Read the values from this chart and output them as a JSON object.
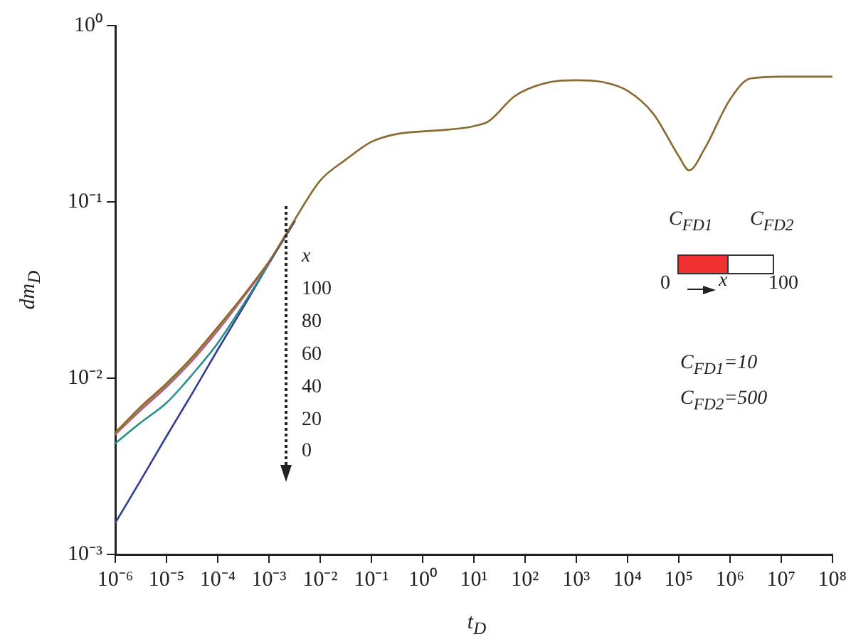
{
  "chart_data": {
    "type": "line",
    "xlabel": "t$_{D}$",
    "ylabel": "dm$_{D}$",
    "log": "xy",
    "grid": false,
    "legend": false,
    "marker": "none",
    "line_style": "solid",
    "x": [
      1e-06,
      3.2e-06,
      1e-05,
      3.2e-05,
      0.0001,
      0.00032,
      0.001,
      0.0032,
      0.01,
      0.032,
      0.1,
      0.32,
      1,
      3.2,
      10,
      20,
      63,
      320,
      1000,
      3200,
      10000,
      32000,
      100000,
      160000,
      320000,
      1000000,
      2500000,
      10000000,
      100000000
    ],
    "xlim": [
      1e-06,
      100000000.0
    ],
    "ylim": [
      0.001,
      1
    ],
    "xticks": [
      {
        "value": 1e-06,
        "label": "10⁻⁶"
      },
      {
        "value": 1e-05,
        "label": "10⁻⁵"
      },
      {
        "value": 0.0001,
        "label": "10⁻⁴"
      },
      {
        "value": 0.001,
        "label": "10⁻³"
      },
      {
        "value": 0.01,
        "label": "10⁻²"
      },
      {
        "value": 0.1,
        "label": "10⁻¹"
      },
      {
        "value": 1,
        "label": "10⁰"
      },
      {
        "value": 10,
        "label": "10¹"
      },
      {
        "value": 100,
        "label": "10²"
      },
      {
        "value": 1000,
        "label": "10³"
      },
      {
        "value": 10000,
        "label": "10⁴"
      },
      {
        "value": 100000,
        "label": "10⁵"
      },
      {
        "value": 1000000,
        "label": "10⁶"
      },
      {
        "value": 10000000,
        "label": "10⁷"
      },
      {
        "value": 100000000,
        "label": "10⁸"
      }
    ],
    "yticks": [
      {
        "value": 0.001,
        "label": "10⁻³"
      },
      {
        "value": 0.01,
        "label": "10⁻²"
      },
      {
        "value": 0.1,
        "label": "10⁻¹"
      },
      {
        "value": 1,
        "label": "10⁰"
      }
    ],
    "series": [
      {
        "color": "#333b96",
        "values": [
          0.00151,
          0.00266,
          0.00468,
          0.00822,
          0.0145,
          0.0254,
          0.0447,
          0.0776,
          null,
          null,
          null,
          null,
          null,
          null,
          null,
          null,
          null,
          null,
          null,
          null,
          null,
          null,
          null,
          null,
          null,
          null,
          null,
          null,
          null
        ]
      },
      {
        "color": "#2a8f8a",
        "values": [
          0.00427,
          0.00562,
          0.00724,
          0.0105,
          0.0158,
          0.0263,
          0.0447,
          null,
          null,
          null,
          null,
          null,
          null,
          null,
          null,
          null,
          null,
          null,
          null,
          null,
          null,
          null,
          null,
          null,
          null,
          null,
          null,
          null,
          null
        ]
      },
      {
        "color": "#c04bb8",
        "values": [
          0.00479,
          0.00661,
          0.00891,
          0.0126,
          0.0186,
          0.0288,
          0.0452,
          null,
          null,
          null,
          null,
          null,
          null,
          null,
          null,
          null,
          null,
          null,
          null,
          null,
          null,
          null,
          null,
          null,
          null,
          null,
          null,
          null,
          null
        ]
      },
      {
        "color": "#6f9a3c",
        "values": [
          0.00484,
          0.00676,
          0.00912,
          0.0129,
          0.0191,
          0.0292,
          null,
          null,
          null,
          null,
          null,
          null,
          null,
          null,
          null,
          null,
          null,
          null,
          null,
          null,
          null,
          null,
          null,
          null,
          null,
          null,
          null,
          null,
          null
        ]
      },
      {
        "color": "#d0803a",
        "values": [
          0.00487,
          0.00684,
          0.00923,
          0.013,
          0.0193,
          0.0294,
          0.0456,
          null,
          null,
          null,
          null,
          null,
          null,
          null,
          null,
          null,
          null,
          null,
          null,
          null,
          null,
          null,
          null,
          null,
          null,
          null,
          null,
          null,
          null
        ]
      },
      {
        "color": "#8a6a30",
        "values": [
          0.0049,
          0.00692,
          0.00933,
          0.0132,
          0.0195,
          0.0295,
          0.0457,
          0.0794,
          0.132,
          0.174,
          0.219,
          0.243,
          0.251,
          0.257,
          0.269,
          0.288,
          0.398,
          0.479,
          0.49,
          0.479,
          0.427,
          0.316,
          0.182,
          0.151,
          0.2,
          0.38,
          0.501,
          0.513,
          0.513
        ]
      }
    ],
    "annotations": [
      "x",
      "100",
      "80",
      "60",
      "40",
      "20",
      "0",
      "C$_{FD1}$",
      "C$_{FD2}$",
      "0",
      "x",
      "100",
      "C$_{FD1}$=10",
      "C$_{FD2}$=500"
    ]
  }
}
